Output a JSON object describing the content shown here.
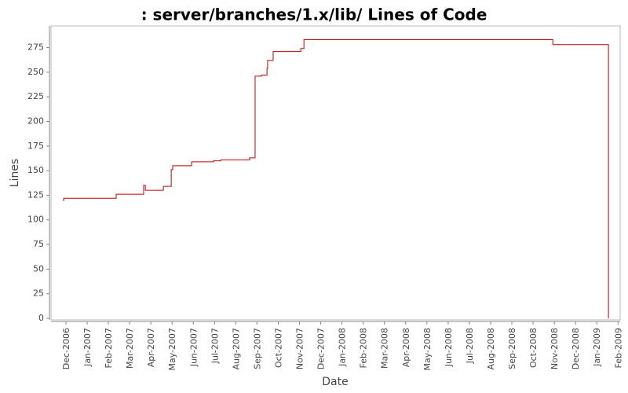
{
  "chart_data": {
    "type": "step-line",
    "title": ": server/branches/1.x/lib/ Lines of Code",
    "x_label": "Date",
    "y_label": "Lines",
    "xlim": [
      -0.7,
      26.1
    ],
    "xticks": [
      {
        "value": 0,
        "label": "Dec-2006"
      },
      {
        "value": 1,
        "label": "Jan-2007"
      },
      {
        "value": 2,
        "label": "Feb-2007"
      },
      {
        "value": 3,
        "label": "Mar-2007"
      },
      {
        "value": 4,
        "label": "Apr-2007"
      },
      {
        "value": 5,
        "label": "May-2007"
      },
      {
        "value": 6,
        "label": "Jun-2007"
      },
      {
        "value": 7,
        "label": "Jul-2007"
      },
      {
        "value": 8,
        "label": "Aug-2007"
      },
      {
        "value": 9,
        "label": "Sep-2007"
      },
      {
        "value": 10,
        "label": "Oct-2007"
      },
      {
        "value": 11,
        "label": "Nov-2007"
      },
      {
        "value": 12,
        "label": "Dec-2007"
      },
      {
        "value": 13,
        "label": "Jan-2008"
      },
      {
        "value": 14,
        "label": "Feb-2008"
      },
      {
        "value": 15,
        "label": "Mar-2008"
      },
      {
        "value": 16,
        "label": "Apr-2008"
      },
      {
        "value": 17,
        "label": "May-2008"
      },
      {
        "value": 18,
        "label": "Jun-2008"
      },
      {
        "value": 19,
        "label": "Jul-2008"
      },
      {
        "value": 20,
        "label": "Aug-2008"
      },
      {
        "value": 21,
        "label": "Sep-2008"
      },
      {
        "value": 22,
        "label": "Oct-2008"
      },
      {
        "value": 23,
        "label": "Nov-2008"
      },
      {
        "value": 24,
        "label": "Dec-2008"
      },
      {
        "value": 25,
        "label": "Jan-2009"
      },
      {
        "value": 26,
        "label": "Feb-2009"
      }
    ],
    "ylim": [
      0,
      297
    ],
    "yticks": [
      0,
      25,
      50,
      75,
      100,
      125,
      150,
      175,
      200,
      225,
      250,
      275
    ],
    "grid": false,
    "series": [
      {
        "color": "#c00000",
        "x": [
          -0.15,
          -0.1,
          2.37,
          3.66,
          3.74,
          4.59,
          4.96,
          5.03,
          5.92,
          6.95,
          7.29,
          8.65,
          8.91,
          9.21,
          9.47,
          9.5,
          9.76,
          11.06,
          11.21,
          22.93,
          25.55
        ],
        "values": [
          120,
          122,
          126,
          135,
          130,
          134,
          151,
          155,
          159,
          160,
          161,
          163,
          246,
          247,
          254,
          262,
          271,
          274,
          283,
          278,
          0
        ]
      }
    ]
  }
}
